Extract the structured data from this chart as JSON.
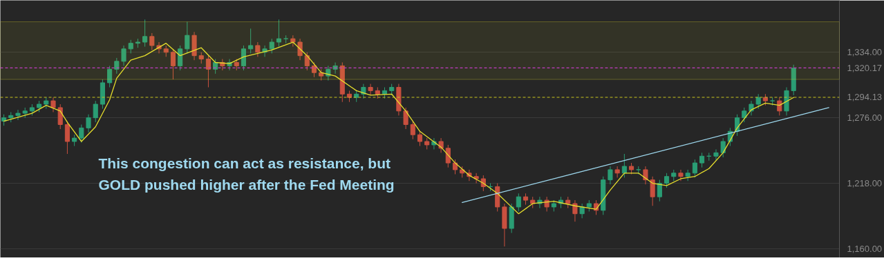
{
  "chart_data": {
    "type": "candlestick",
    "categories": [
      null,
      null,
      null,
      null,
      null,
      null,
      null,
      null,
      null,
      null,
      null,
      null,
      null,
      null,
      null,
      null,
      null,
      null,
      null,
      null,
      null,
      null,
      null,
      null,
      null,
      null,
      null,
      null,
      null,
      null,
      null,
      null,
      null,
      null,
      null,
      null,
      null,
      null,
      null,
      null,
      null,
      null,
      null,
      null,
      null,
      null,
      null,
      null,
      null,
      null,
      null,
      null,
      null,
      null,
      null,
      null,
      null,
      null,
      null,
      null,
      null,
      null,
      null,
      null,
      null,
      null,
      null,
      null,
      null,
      null,
      null,
      null,
      null,
      null,
      null,
      null,
      null,
      null,
      null,
      null,
      null,
      null,
      null,
      null,
      null,
      null,
      null,
      null,
      null,
      null,
      null,
      null,
      null,
      null,
      null,
      null,
      null,
      null,
      null,
      null,
      null,
      null,
      null,
      null,
      null,
      null,
      null,
      null,
      null,
      null,
      null,
      null,
      null,
      null,
      null,
      null,
      null,
      null,
      null
    ],
    "ohlc": [
      [
        1273,
        1279,
        1269,
        1276
      ],
      [
        1276,
        1281,
        1272,
        1278
      ],
      [
        1278,
        1283,
        1274,
        1280
      ],
      [
        1280,
        1285,
        1276,
        1282
      ],
      [
        1282,
        1288,
        1278,
        1285
      ],
      [
        1285,
        1291,
        1281,
        1288
      ],
      [
        1288,
        1294,
        1284,
        1291
      ],
      [
        1291,
        1294,
        1281,
        1285
      ],
      [
        1285,
        1288,
        1266,
        1270
      ],
      [
        1270,
        1273,
        1244,
        1255
      ],
      [
        1255,
        1261,
        1251,
        1258
      ],
      [
        1258,
        1270,
        1254,
        1267
      ],
      [
        1267,
        1279,
        1263,
        1276
      ],
      [
        1276,
        1291,
        1272,
        1288
      ],
      [
        1288,
        1310,
        1284,
        1307
      ],
      [
        1307,
        1322,
        1303,
        1319
      ],
      [
        1319,
        1329,
        1315,
        1326
      ],
      [
        1326,
        1340,
        1322,
        1337
      ],
      [
        1337,
        1345,
        1333,
        1342
      ],
      [
        1342,
        1346,
        1338,
        1343
      ],
      [
        1343,
        1363,
        1339,
        1348
      ],
      [
        1348,
        1351,
        1336,
        1340
      ],
      [
        1340,
        1343,
        1333,
        1337
      ],
      [
        1337,
        1340,
        1330,
        1334
      ],
      [
        1334,
        1337,
        1310,
        1322
      ],
      [
        1322,
        1340,
        1318,
        1337
      ],
      [
        1337,
        1361,
        1333,
        1349
      ],
      [
        1349,
        1352,
        1327,
        1331
      ],
      [
        1331,
        1334,
        1324,
        1328
      ],
      [
        1328,
        1331,
        1303,
        1319
      ],
      [
        1319,
        1328,
        1315,
        1325
      ],
      [
        1325,
        1328,
        1318,
        1322
      ],
      [
        1322,
        1328,
        1318,
        1325
      ],
      [
        1325,
        1328,
        1318,
        1322
      ],
      [
        1322,
        1340,
        1318,
        1337
      ],
      [
        1337,
        1355,
        1333,
        1340
      ],
      [
        1340,
        1343,
        1330,
        1334
      ],
      [
        1334,
        1340,
        1330,
        1337
      ],
      [
        1337,
        1346,
        1333,
        1343
      ],
      [
        1343,
        1363,
        1339,
        1346
      ],
      [
        1346,
        1349,
        1342,
        1346
      ],
      [
        1346,
        1349,
        1339,
        1343
      ],
      [
        1343,
        1346,
        1327,
        1331
      ],
      [
        1331,
        1334,
        1318,
        1322
      ],
      [
        1322,
        1325,
        1312,
        1316
      ],
      [
        1316,
        1319,
        1309,
        1313
      ],
      [
        1313,
        1322,
        1309,
        1319
      ],
      [
        1319,
        1325,
        1315,
        1322
      ],
      [
        1322,
        1325,
        1290,
        1297
      ],
      [
        1297,
        1300,
        1290,
        1294
      ],
      [
        1294,
        1300,
        1290,
        1297
      ],
      [
        1297,
        1306,
        1293,
        1303
      ],
      [
        1303,
        1306,
        1296,
        1300
      ],
      [
        1300,
        1303,
        1293,
        1297
      ],
      [
        1297,
        1303,
        1293,
        1300
      ],
      [
        1300,
        1306,
        1296,
        1303
      ],
      [
        1303,
        1306,
        1278,
        1282
      ],
      [
        1282,
        1285,
        1266,
        1270
      ],
      [
        1270,
        1273,
        1257,
        1261
      ],
      [
        1261,
        1264,
        1251,
        1255
      ],
      [
        1255,
        1258,
        1248,
        1252
      ],
      [
        1252,
        1258,
        1248,
        1255
      ],
      [
        1255,
        1258,
        1245,
        1249
      ],
      [
        1249,
        1252,
        1232,
        1236
      ],
      [
        1236,
        1239,
        1226,
        1230
      ],
      [
        1230,
        1233,
        1223,
        1227
      ],
      [
        1227,
        1230,
        1220,
        1224
      ],
      [
        1224,
        1227,
        1218,
        1222
      ],
      [
        1222,
        1225,
        1211,
        1215
      ],
      [
        1215,
        1218,
        1211,
        1215
      ],
      [
        1215,
        1218,
        1193,
        1197
      ],
      [
        1197,
        1200,
        1162,
        1178
      ],
      [
        1178,
        1200,
        1174,
        1197
      ],
      [
        1197,
        1209,
        1193,
        1206
      ],
      [
        1206,
        1209,
        1199,
        1203
      ],
      [
        1203,
        1206,
        1196,
        1200
      ],
      [
        1200,
        1206,
        1196,
        1203
      ],
      [
        1203,
        1206,
        1193,
        1197
      ],
      [
        1197,
        1203,
        1193,
        1200
      ],
      [
        1200,
        1206,
        1196,
        1203
      ],
      [
        1203,
        1206,
        1196,
        1200
      ],
      [
        1200,
        1203,
        1184,
        1191
      ],
      [
        1191,
        1200,
        1187,
        1197
      ],
      [
        1197,
        1203,
        1193,
        1200
      ],
      [
        1200,
        1203,
        1190,
        1194
      ],
      [
        1194,
        1224,
        1190,
        1221
      ],
      [
        1221,
        1233,
        1217,
        1230
      ],
      [
        1230,
        1233,
        1223,
        1227
      ],
      [
        1227,
        1244,
        1223,
        1233
      ],
      [
        1233,
        1236,
        1226,
        1230
      ],
      [
        1230,
        1233,
        1226,
        1230
      ],
      [
        1230,
        1233,
        1217,
        1221
      ],
      [
        1221,
        1224,
        1198,
        1206
      ],
      [
        1206,
        1221,
        1202,
        1218
      ],
      [
        1218,
        1227,
        1214,
        1224
      ],
      [
        1224,
        1230,
        1220,
        1227
      ],
      [
        1227,
        1230,
        1220,
        1224
      ],
      [
        1224,
        1230,
        1220,
        1227
      ],
      [
        1227,
        1239,
        1223,
        1236
      ],
      [
        1236,
        1245,
        1232,
        1242
      ],
      [
        1242,
        1245,
        1238,
        1242
      ],
      [
        1242,
        1248,
        1238,
        1245
      ],
      [
        1245,
        1258,
        1241,
        1255
      ],
      [
        1255,
        1267,
        1251,
        1264
      ],
      [
        1264,
        1279,
        1260,
        1276
      ],
      [
        1276,
        1285,
        1272,
        1282
      ],
      [
        1282,
        1291,
        1278,
        1288
      ],
      [
        1288,
        1297,
        1284,
        1294
      ],
      [
        1294,
        1297,
        1287,
        1291
      ],
      [
        1291,
        1294,
        1287,
        1291
      ],
      [
        1291,
        1294,
        1278,
        1282
      ],
      [
        1282,
        1303,
        1278,
        1300
      ],
      [
        1300,
        1323,
        1296,
        1320
      ],
      null,
      null,
      null,
      null,
      null,
      null
    ],
    "series": [
      {
        "type": "line",
        "color": "#e6de2c",
        "values": [
          1273,
          null,
          null,
          null,
          1280,
          null,
          1287,
          null,
          1282,
          1272,
          null,
          1255,
          null,
          1268,
          null,
          1292,
          1311,
          null,
          1327,
          null,
          1331,
          null,
          null,
          1342,
          null,
          1331,
          null,
          null,
          1338,
          null,
          1325,
          null,
          1324,
          null,
          1330,
          null,
          null,
          null,
          1336,
          null,
          null,
          1343,
          null,
          1331,
          null,
          1316,
          null,
          1313,
          null,
          null,
          1300,
          null,
          1296,
          null,
          null,
          1297,
          null,
          1282,
          null,
          1264,
          null,
          null,
          1250,
          null,
          1236,
          null,
          1225,
          null,
          1218,
          null,
          1209,
          null,
          1197,
          1191,
          null,
          1200,
          null,
          null,
          1202,
          null,
          null,
          1198,
          null,
          null,
          1195,
          null,
          1212,
          null,
          1227,
          null,
          1227,
          null,
          1218,
          null,
          1216,
          null,
          1222,
          null,
          1224,
          null,
          1231,
          null,
          1245,
          null,
          1267,
          null,
          1283,
          null,
          1289,
          null,
          1287,
          null,
          1294,
          null,
          null,
          null,
          null,
          null,
          null
        ]
      },
      {
        "type": "line",
        "color": "#9ed8ee",
        "values": [
          null,
          null,
          null,
          null,
          null,
          null,
          null,
          null,
          null,
          null,
          null,
          null,
          null,
          null,
          null,
          null,
          null,
          null,
          null,
          null,
          null,
          null,
          null,
          null,
          null,
          null,
          null,
          null,
          null,
          null,
          null,
          null,
          null,
          null,
          null,
          null,
          null,
          null,
          null,
          null,
          null,
          null,
          null,
          null,
          null,
          null,
          null,
          null,
          null,
          null,
          null,
          null,
          null,
          null,
          null,
          null,
          null,
          null,
          null,
          null,
          null,
          null,
          null,
          null,
          null,
          1201,
          null,
          null,
          null,
          null,
          null,
          null,
          null,
          null,
          null,
          null,
          null,
          null,
          null,
          null,
          null,
          null,
          null,
          null,
          null,
          null,
          null,
          null,
          null,
          null,
          null,
          null,
          null,
          null,
          null,
          null,
          null,
          null,
          null,
          null,
          null,
          null,
          null,
          null,
          null,
          null,
          null,
          null,
          null,
          null,
          null,
          null,
          null,
          null,
          null,
          null,
          null,
          1285,
          null
        ]
      }
    ],
    "ylim": [
      1152,
      1380
    ],
    "yticks": [
      {
        "value": 1160,
        "label": "1,160.00"
      },
      {
        "value": 1218,
        "label": "1,218.00"
      },
      {
        "value": 1276,
        "label": "1,276.00"
      },
      {
        "value": 1334,
        "label": "1,334.00"
      }
    ],
    "ref_lines": [
      {
        "axis": "y",
        "value": 1320.17,
        "label": "1,320.17",
        "color": "#c13cc1",
        "line_style": "dashed"
      },
      {
        "axis": "y",
        "value": 1294.13,
        "label": "1,294.13",
        "color": "#c8c41e",
        "line_style": "dashed"
      }
    ],
    "bands": [
      {
        "axis": "y",
        "from": 1310,
        "to": 1361,
        "color": "#e8e030"
      }
    ],
    "annotations": [
      "This congestion can act as resistance, but\nGOLD pushed higher after the Fed Meeting"
    ],
    "grid": "y",
    "tick_labels": "y"
  }
}
